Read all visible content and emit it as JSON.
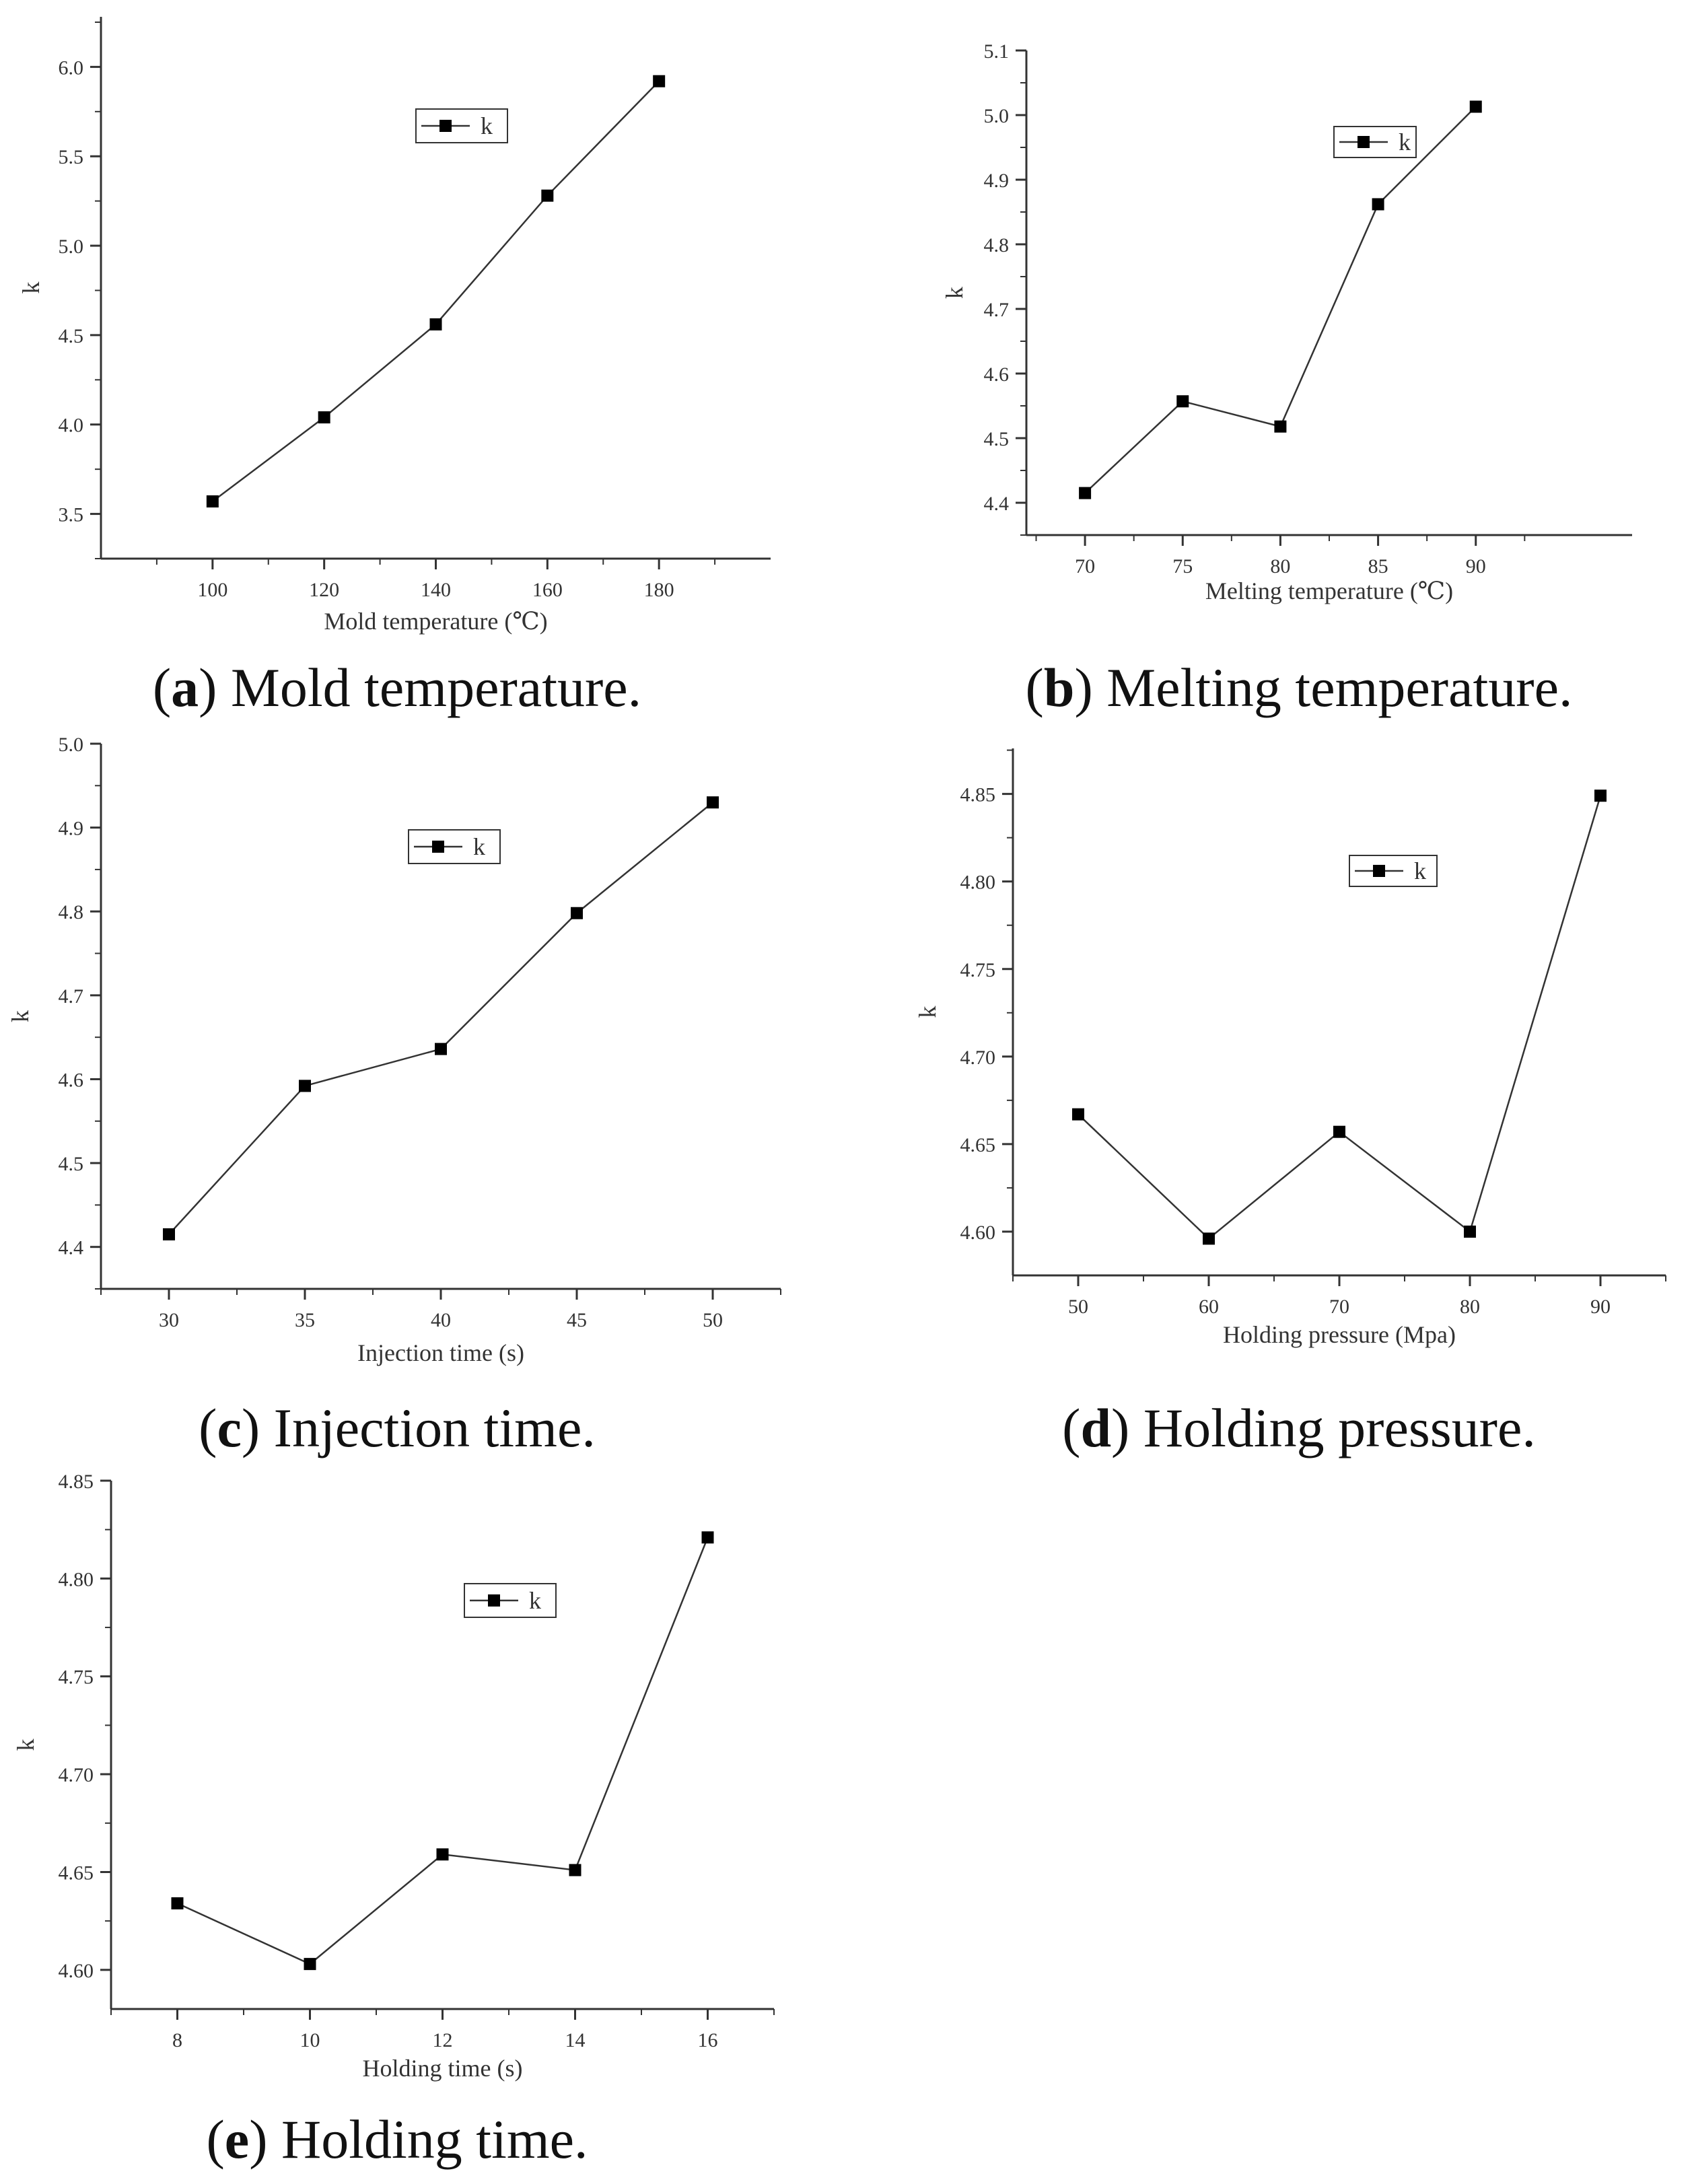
{
  "chart_data": [
    {
      "id": "a",
      "type": "line",
      "label": "a",
      "caption": "Mold temperature.",
      "xlabel": "Mold temperature (℃)",
      "ylabel": "k",
      "x": [
        100,
        120,
        140,
        160,
        180
      ],
      "series": [
        {
          "name": "k",
          "values": [
            3.57,
            4.04,
            4.56,
            5.28,
            5.92
          ]
        }
      ],
      "xlim": [
        80,
        200
      ],
      "ylim": [
        3.25,
        6.28
      ],
      "xticks": [
        100,
        120,
        140,
        160,
        180
      ],
      "xticklabels": [
        "100",
        "120",
        "140",
        "160",
        "180"
      ],
      "yticks": [
        3.5,
        4.0,
        4.5,
        5.0,
        5.5,
        6.0
      ],
      "yticklabels": [
        "3.5",
        "4.0",
        "4.5",
        "5.0",
        "5.5",
        "6.0"
      ],
      "legend": "top-center",
      "grid": false
    },
    {
      "id": "b",
      "type": "line",
      "label": "b",
      "caption": "Melting temperature.",
      "xlabel": "Melting temperature (℃)",
      "ylabel": "k",
      "x": [
        70,
        75,
        80,
        85,
        90
      ],
      "series": [
        {
          "name": "k",
          "values": [
            4.415,
            4.557,
            4.518,
            4.862,
            5.013
          ]
        }
      ],
      "xlim": [
        67,
        98
      ],
      "ylim": [
        4.35,
        5.1
      ],
      "xticks": [
        70,
        75,
        80,
        85,
        90
      ],
      "xticklabels": [
        "70",
        "75",
        "80",
        "85",
        "90"
      ],
      "yticks": [
        4.4,
        4.5,
        4.6,
        4.7,
        4.8,
        4.9,
        5.0,
        5.1
      ],
      "yticklabels": [
        "4.4",
        "4.5",
        "4.6",
        "4.7",
        "4.8",
        "4.9",
        "5.0",
        "5.1"
      ],
      "legend": "top-center",
      "grid": false
    },
    {
      "id": "c",
      "type": "line",
      "label": "c",
      "caption": "Injection time.",
      "xlabel": "Injection time (s)",
      "ylabel": "k",
      "x": [
        30,
        35,
        40,
        45,
        50
      ],
      "series": [
        {
          "name": "k",
          "values": [
            4.415,
            4.592,
            4.636,
            4.798,
            4.93
          ]
        }
      ],
      "xlim": [
        27.5,
        52.5
      ],
      "ylim": [
        4.35,
        5.0
      ],
      "xticks": [
        30,
        35,
        40,
        45,
        50
      ],
      "xticklabels": [
        "30",
        "35",
        "40",
        "45",
        "50"
      ],
      "yticks": [
        4.4,
        4.5,
        4.6,
        4.7,
        4.8,
        4.9,
        5.0
      ],
      "yticklabels": [
        "4.4",
        "4.5",
        "4.6",
        "4.7",
        "4.8",
        "4.9",
        "5.0"
      ],
      "legend": "top-center",
      "grid": false
    },
    {
      "id": "d",
      "type": "line",
      "label": "d",
      "caption": "Holding pressure.",
      "xlabel": "Holding pressure (Mpa)",
      "ylabel": "k",
      "x": [
        50,
        60,
        70,
        80,
        90
      ],
      "series": [
        {
          "name": "k",
          "values": [
            4.667,
            4.596,
            4.657,
            4.6,
            4.849
          ]
        }
      ],
      "xlim": [
        45,
        95
      ],
      "ylim": [
        4.575,
        4.876
      ],
      "xticks": [
        50,
        60,
        70,
        80,
        90
      ],
      "xticklabels": [
        "50",
        "60",
        "70",
        "80",
        "90"
      ],
      "yticks": [
        4.6,
        4.65,
        4.7,
        4.75,
        4.8,
        4.85
      ],
      "yticklabels": [
        "4.60",
        "4.65",
        "4.70",
        "4.75",
        "4.80",
        "4.85"
      ],
      "legend": "top-center",
      "grid": false
    },
    {
      "id": "e",
      "type": "line",
      "label": "e",
      "caption": "Holding time.",
      "xlabel": "Holding time (s)",
      "ylabel": "k",
      "x": [
        8,
        10,
        12,
        14,
        16
      ],
      "series": [
        {
          "name": "k",
          "values": [
            4.634,
            4.603,
            4.659,
            4.651,
            4.821
          ]
        }
      ],
      "xlim": [
        7,
        17
      ],
      "ylim": [
        4.58,
        4.85
      ],
      "xticks": [
        8,
        10,
        12,
        14,
        16
      ],
      "xticklabels": [
        "8",
        "10",
        "12",
        "14",
        "16"
      ],
      "yticks": [
        4.6,
        4.65,
        4.7,
        4.75,
        4.8,
        4.85
      ],
      "yticklabels": [
        "4.60",
        "4.65",
        "4.70",
        "4.75",
        "4.80",
        "4.85"
      ],
      "legend": "top-center",
      "grid": false
    }
  ],
  "colors": {
    "line": "#333333",
    "marker": "#000000",
    "axis": "#333333",
    "text": "#333333"
  }
}
